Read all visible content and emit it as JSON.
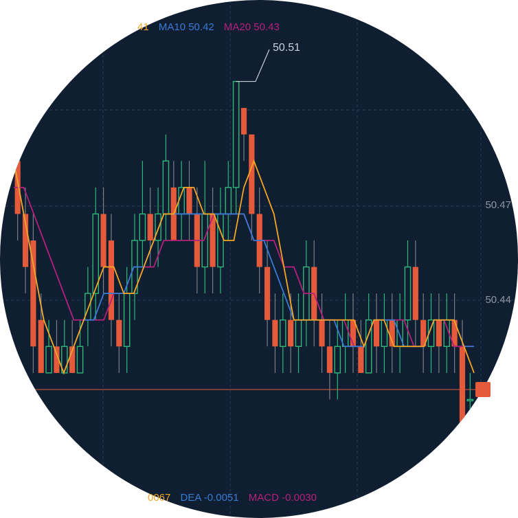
{
  "colors": {
    "background": "#0f1e31",
    "up": "#2fb87a",
    "down": "#e45a3a",
    "ma5": "#f5a623",
    "ma10": "#3a7bd5",
    "ma20": "#b5207c",
    "grid": "#2a3a52",
    "last_price_line": "#e45a3a"
  },
  "legend": {
    "ma5_value_fragment": "41",
    "ma10_label": "MA10 50.42",
    "ma20_label": "MA20 50.43",
    "macd_dif_fragment": "0067",
    "macd_dea_label": "DEA -0.0051",
    "macd_macd_label": "MACD -0.0030"
  },
  "axis": {
    "tick_1": "50.47",
    "tick_2": "50.44"
  },
  "annotations": {
    "high_label": "50.51"
  },
  "chart_data": {
    "type": "candlestick",
    "y_ticks": [
      50.47,
      50.44
    ],
    "ylim": [
      50.38,
      50.52
    ],
    "high_marker": 50.51,
    "candles": [
      [
        50.48,
        50.46,
        50.49,
        50.45
      ],
      [
        50.46,
        50.44,
        50.47,
        50.43
      ],
      [
        50.45,
        50.41,
        50.46,
        50.4
      ],
      [
        50.42,
        50.4,
        50.43,
        50.4
      ],
      [
        50.4,
        50.41,
        50.42,
        50.4
      ],
      [
        50.41,
        50.4,
        50.42,
        50.4
      ],
      [
        50.4,
        50.41,
        50.42,
        50.4
      ],
      [
        50.41,
        50.4,
        50.42,
        50.4
      ],
      [
        50.4,
        50.41,
        50.42,
        50.4
      ],
      [
        50.42,
        50.43,
        50.44,
        50.41
      ],
      [
        50.43,
        50.46,
        50.47,
        50.42
      ],
      [
        50.46,
        50.44,
        50.47,
        50.43
      ],
      [
        50.45,
        50.42,
        50.46,
        50.41
      ],
      [
        50.42,
        50.41,
        50.43,
        50.4
      ],
      [
        50.41,
        50.43,
        50.44,
        50.4
      ],
      [
        50.43,
        50.45,
        50.46,
        50.42
      ],
      [
        50.45,
        50.46,
        50.48,
        50.44
      ],
      [
        50.46,
        50.45,
        50.47,
        50.44
      ],
      [
        50.45,
        50.46,
        50.47,
        50.44
      ],
      [
        50.46,
        50.48,
        50.49,
        50.45
      ],
      [
        50.47,
        50.45,
        50.48,
        50.45
      ],
      [
        50.46,
        50.47,
        50.48,
        50.45
      ],
      [
        50.47,
        50.46,
        50.48,
        50.45
      ],
      [
        50.46,
        50.44,
        50.47,
        50.43
      ],
      [
        50.44,
        50.46,
        50.48,
        50.43
      ],
      [
        50.46,
        50.44,
        50.47,
        50.43
      ],
      [
        50.44,
        50.46,
        50.47,
        50.43
      ],
      [
        50.46,
        50.47,
        50.48,
        50.45
      ],
      [
        50.47,
        50.51,
        50.51,
        50.46
      ],
      [
        50.5,
        50.49,
        50.5,
        50.48
      ],
      [
        50.49,
        50.46,
        50.49,
        50.45
      ],
      [
        50.46,
        50.44,
        50.47,
        50.43
      ],
      [
        50.44,
        50.42,
        50.45,
        50.41
      ],
      [
        50.42,
        50.41,
        50.43,
        50.4
      ],
      [
        50.41,
        50.42,
        50.43,
        50.4
      ],
      [
        50.42,
        50.41,
        50.43,
        50.4
      ],
      [
        50.41,
        50.42,
        50.43,
        50.4
      ],
      [
        50.42,
        50.44,
        50.45,
        50.41
      ],
      [
        50.44,
        50.42,
        50.45,
        50.41
      ],
      [
        50.42,
        50.41,
        50.43,
        50.4
      ],
      [
        50.41,
        50.4,
        50.42,
        50.39
      ],
      [
        50.4,
        50.41,
        50.42,
        50.39
      ],
      [
        50.41,
        50.42,
        50.43,
        50.4
      ],
      [
        50.42,
        50.41,
        50.43,
        50.4
      ],
      [
        50.41,
        50.4,
        50.42,
        50.4
      ],
      [
        50.4,
        50.42,
        50.43,
        50.4
      ],
      [
        50.42,
        50.41,
        50.43,
        50.4
      ],
      [
        50.41,
        50.42,
        50.43,
        50.4
      ],
      [
        50.42,
        50.41,
        50.43,
        50.4
      ],
      [
        50.41,
        50.42,
        50.43,
        50.4
      ],
      [
        50.42,
        50.44,
        50.45,
        50.41
      ],
      [
        50.44,
        50.42,
        50.45,
        50.41
      ],
      [
        50.42,
        50.41,
        50.43,
        50.4
      ],
      [
        50.41,
        50.42,
        50.43,
        50.4
      ],
      [
        50.42,
        50.41,
        50.43,
        50.4
      ],
      [
        50.41,
        50.42,
        50.43,
        50.4
      ],
      [
        50.42,
        50.41,
        50.43,
        50.4
      ],
      [
        50.41,
        50.38,
        50.42,
        50.38
      ],
      [
        50.39,
        50.39,
        50.4,
        50.38
      ]
    ],
    "ma5": [
      50.48,
      50.46,
      50.44,
      50.42,
      50.41,
      50.4,
      50.41,
      50.42,
      50.43,
      50.44,
      50.44,
      50.43,
      50.43,
      50.44,
      50.45,
      50.46,
      50.46,
      50.47,
      50.47,
      50.46,
      50.46,
      50.45,
      50.45,
      50.47,
      50.48,
      50.47,
      50.46,
      50.44,
      50.42,
      50.42,
      50.42,
      50.42,
      50.42,
      50.42,
      50.42,
      50.41,
      50.42,
      50.42,
      50.41,
      50.41,
      50.41,
      50.41,
      50.42,
      50.42,
      50.42,
      50.41,
      50.4
    ],
    "ma10": [
      50.48,
      50.46,
      50.44,
      50.42,
      50.41,
      50.4,
      50.41,
      50.42,
      50.42,
      50.43,
      50.43,
      50.43,
      50.44,
      50.44,
      50.45,
      50.46,
      50.46,
      50.46,
      50.46,
      50.46,
      50.46,
      50.46,
      50.46,
      50.46,
      50.45,
      50.45,
      50.44,
      50.43,
      50.42,
      50.42,
      50.42,
      50.42,
      50.42,
      50.41,
      50.41,
      50.41,
      50.42,
      50.42,
      50.42,
      50.41,
      50.41,
      50.41,
      50.42,
      50.42,
      50.42,
      50.41,
      50.41
    ],
    "ma20": [
      50.47,
      50.47,
      50.46,
      50.45,
      50.44,
      50.43,
      50.42,
      50.42,
      50.42,
      50.42,
      50.43,
      50.43,
      50.43,
      50.44,
      50.44,
      50.45,
      50.45,
      50.45,
      50.45,
      50.45,
      50.46,
      50.46,
      50.46,
      50.46,
      50.45,
      50.45,
      50.45,
      50.44,
      50.44,
      50.43,
      50.43,
      50.42,
      50.42,
      50.42,
      50.41,
      50.41,
      50.42,
      50.42,
      50.42,
      50.42,
      50.41,
      50.41,
      50.42,
      50.42,
      50.41,
      50.41,
      50.41
    ]
  }
}
